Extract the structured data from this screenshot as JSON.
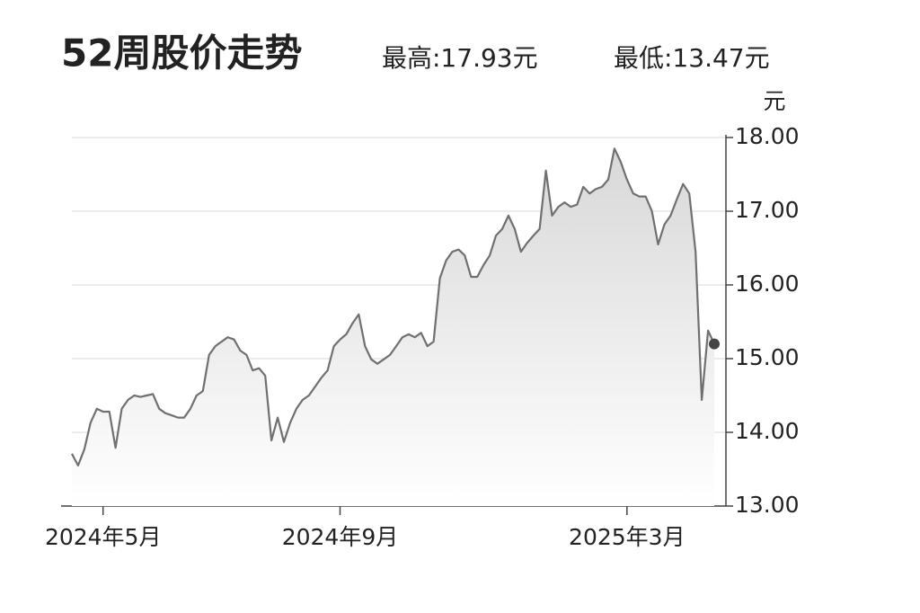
{
  "chart_data": {
    "type": "line",
    "title": "52周股价走势",
    "high": "最高:17.93元",
    "low": "最低:13.47元",
    "y_unit": "元",
    "categories": [
      null,
      null,
      null,
      null,
      null,
      "2024年5月",
      null,
      null,
      null,
      null,
      null,
      null,
      null,
      null,
      null,
      null,
      null,
      null,
      null,
      null,
      null,
      null,
      null,
      null,
      null,
      null,
      null,
      null,
      null,
      null,
      null,
      null,
      null,
      null,
      null,
      null,
      null,
      null,
      null,
      null,
      null,
      null,
      null,
      "2024年9月",
      null,
      null,
      null,
      null,
      null,
      null,
      null,
      null,
      null,
      null,
      null,
      null,
      null,
      null,
      null,
      null,
      null,
      null,
      null,
      null,
      null,
      null,
      null,
      null,
      null,
      null,
      null,
      null,
      null,
      null,
      null,
      null,
      null,
      null,
      null,
      null,
      null,
      null,
      null,
      null,
      null,
      null,
      null,
      null,
      null,
      "2025年3月",
      null,
      null,
      null,
      null,
      null,
      null,
      null,
      null,
      null,
      null,
      null,
      null,
      null,
      null
    ],
    "values": [
      13.71,
      13.55,
      13.77,
      14.13,
      14.32,
      14.28,
      14.28,
      13.79,
      14.32,
      14.44,
      14.5,
      14.48,
      14.5,
      14.52,
      14.32,
      14.26,
      14.23,
      14.2,
      14.2,
      14.32,
      14.5,
      14.56,
      15.05,
      15.17,
      15.23,
      15.29,
      15.26,
      15.11,
      15.05,
      14.84,
      14.87,
      14.77,
      13.89,
      14.2,
      13.87,
      14.13,
      14.32,
      14.44,
      14.5,
      14.62,
      14.74,
      14.84,
      15.17,
      15.26,
      15.33,
      15.48,
      15.6,
      15.17,
      14.99,
      14.93,
      14.99,
      15.05,
      15.17,
      15.29,
      15.33,
      15.29,
      15.35,
      15.17,
      15.23,
      16.09,
      16.33,
      16.45,
      16.48,
      16.4,
      16.11,
      16.11,
      16.27,
      16.4,
      16.67,
      16.76,
      16.94,
      16.76,
      16.45,
      16.57,
      16.67,
      16.76,
      17.55,
      16.94,
      17.06,
      17.12,
      17.06,
      17.09,
      17.33,
      17.24,
      17.3,
      17.33,
      17.43,
      17.85,
      17.67,
      17.43,
      17.24,
      17.2,
      17.2,
      17.0,
      16.55,
      16.82,
      16.94,
      17.16,
      17.37,
      17.24,
      16.45,
      14.44,
      15.38,
      15.2
    ],
    "color": "#707070",
    "ylim": [
      13,
      18
    ],
    "yticks": [
      {
        "value": 13,
        "label": "13.00"
      },
      {
        "value": 14,
        "label": "14.00"
      },
      {
        "value": 15,
        "label": "15.00"
      },
      {
        "value": 16,
        "label": "16.00"
      },
      {
        "value": 17,
        "label": "17.00"
      },
      {
        "value": 18,
        "label": "18.00"
      }
    ],
    "grid": true
  }
}
